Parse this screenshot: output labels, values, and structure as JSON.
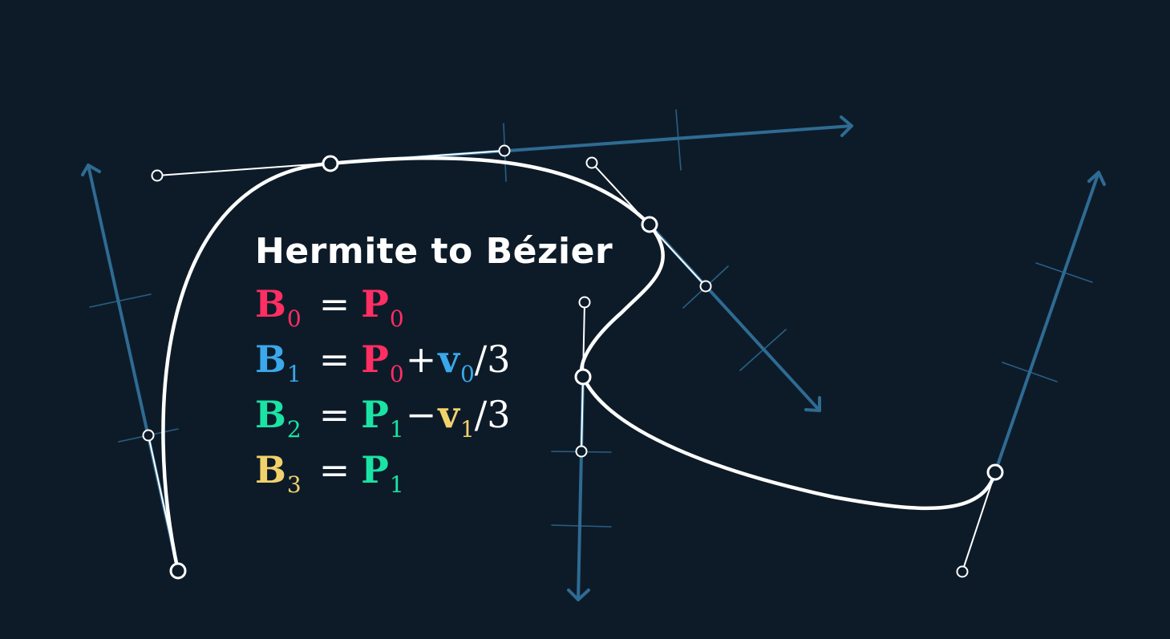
{
  "title": "Hermite to Bézier",
  "colors": {
    "background": "#0d1b29",
    "curve": "#ffffff",
    "vector": "#2f6b92",
    "b0": "#ff2e63",
    "b1": "#3aa8ea",
    "b2": "#1be3a4",
    "b3": "#f2d36b"
  },
  "equations": [
    {
      "lhs": "B",
      "lhs_sub": "0",
      "eq": "=",
      "p": "P",
      "p_sub": "0"
    },
    {
      "lhs": "B",
      "lhs_sub": "1",
      "eq": "=",
      "p": "P",
      "p_sub": "0",
      "op": "+",
      "v": "v",
      "v_sub": "0",
      "div": "/3"
    },
    {
      "lhs": "B",
      "lhs_sub": "2",
      "eq": "=",
      "p": "P",
      "p_sub": "1",
      "op": "−",
      "v": "v",
      "v_sub": "1",
      "div": "/3"
    },
    {
      "lhs": "B",
      "lhs_sub": "3",
      "eq": "=",
      "p": "P",
      "p_sub": "1"
    }
  ]
}
